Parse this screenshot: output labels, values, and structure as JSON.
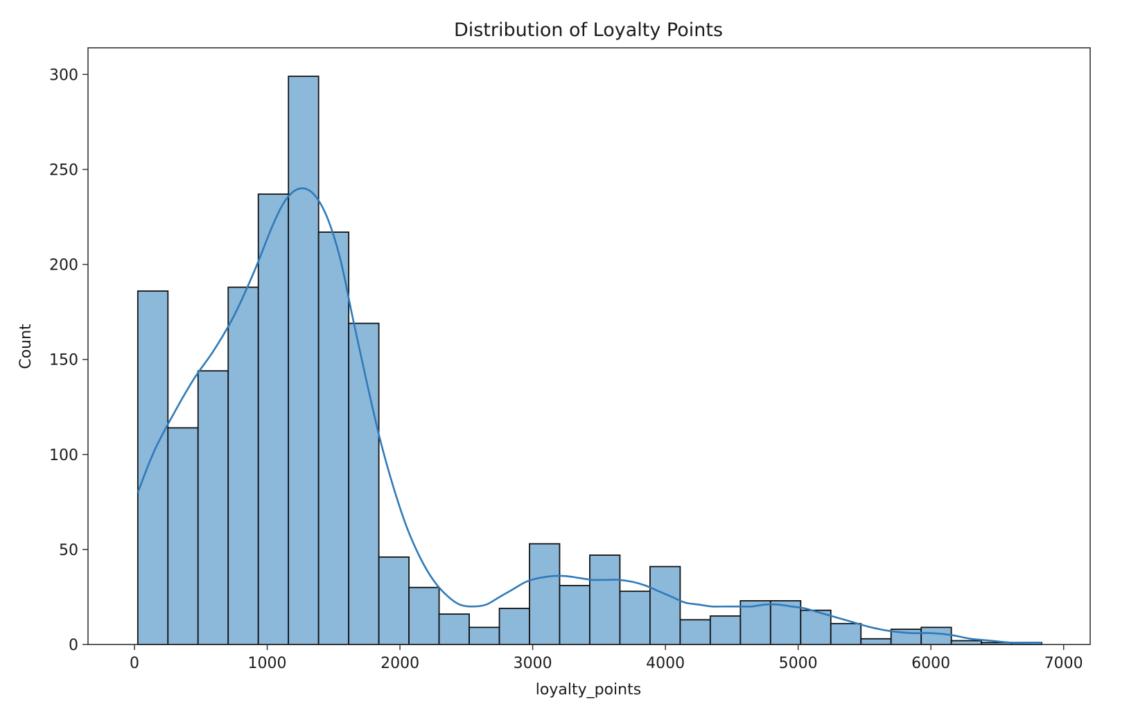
{
  "chart_data": {
    "type": "bar",
    "title": "Distribution of Loyalty Points",
    "xlabel": "loyalty_points",
    "ylabel": "Count",
    "xlim": [
      -350,
      7200
    ],
    "ylim": [
      0,
      314
    ],
    "xticks": [
      0,
      1000,
      2000,
      3000,
      4000,
      5000,
      6000,
      7000
    ],
    "yticks": [
      0,
      50,
      100,
      150,
      200,
      250,
      300
    ],
    "grid": false,
    "legend": "none",
    "bin_edges": [
      25,
      252,
      479,
      706,
      933,
      1160,
      1387,
      1614,
      1841,
      2068,
      2295,
      2522,
      2749,
      2976,
      3203,
      3430,
      3657,
      3884,
      4111,
      4338,
      4565,
      4792,
      5019,
      5246,
      5473,
      5700,
      5927,
      6154,
      6381,
      6608,
      6835
    ],
    "counts": [
      186,
      114,
      144,
      188,
      237,
      299,
      217,
      169,
      46,
      30,
      16,
      9,
      19,
      53,
      31,
      47,
      28,
      41,
      13,
      15,
      23,
      23,
      18,
      11,
      3,
      8,
      9,
      2,
      1,
      1
    ],
    "kde": {
      "x": [
        25,
        150,
        300,
        450,
        600,
        750,
        900,
        1050,
        1150,
        1250,
        1350,
        1450,
        1550,
        1650,
        1750,
        1850,
        1950,
        2050,
        2150,
        2250,
        2350,
        2450,
        2550,
        2650,
        2750,
        2850,
        2950,
        3050,
        3150,
        3250,
        3350,
        3450,
        3550,
        3650,
        3750,
        3850,
        3950,
        4050,
        4150,
        4250,
        4350,
        4450,
        4550,
        4650,
        4750,
        4850,
        4950,
        5050,
        5150,
        5250,
        5400,
        5550,
        5700,
        5850,
        6000,
        6150,
        6300,
        6450,
        6600,
        6750,
        6835
      ],
      "y": [
        80,
        102,
        122,
        140,
        155,
        173,
        196,
        222,
        235,
        240,
        237,
        225,
        203,
        170,
        138,
        108,
        83,
        62,
        46,
        34,
        26,
        21,
        20,
        21,
        25,
        29,
        33,
        35,
        36,
        36,
        35,
        34,
        34,
        34,
        33,
        31,
        28,
        25,
        22,
        21,
        20,
        20,
        20,
        20,
        21,
        21,
        20,
        19,
        17,
        15,
        12,
        9,
        7,
        6,
        6,
        5,
        3,
        2,
        1,
        1,
        1
      ]
    },
    "colors": {
      "bar_fill": "#8cb8da",
      "bar_edge": "#111111",
      "kde_line": "#2f7ab8",
      "axis": "#333333"
    }
  }
}
